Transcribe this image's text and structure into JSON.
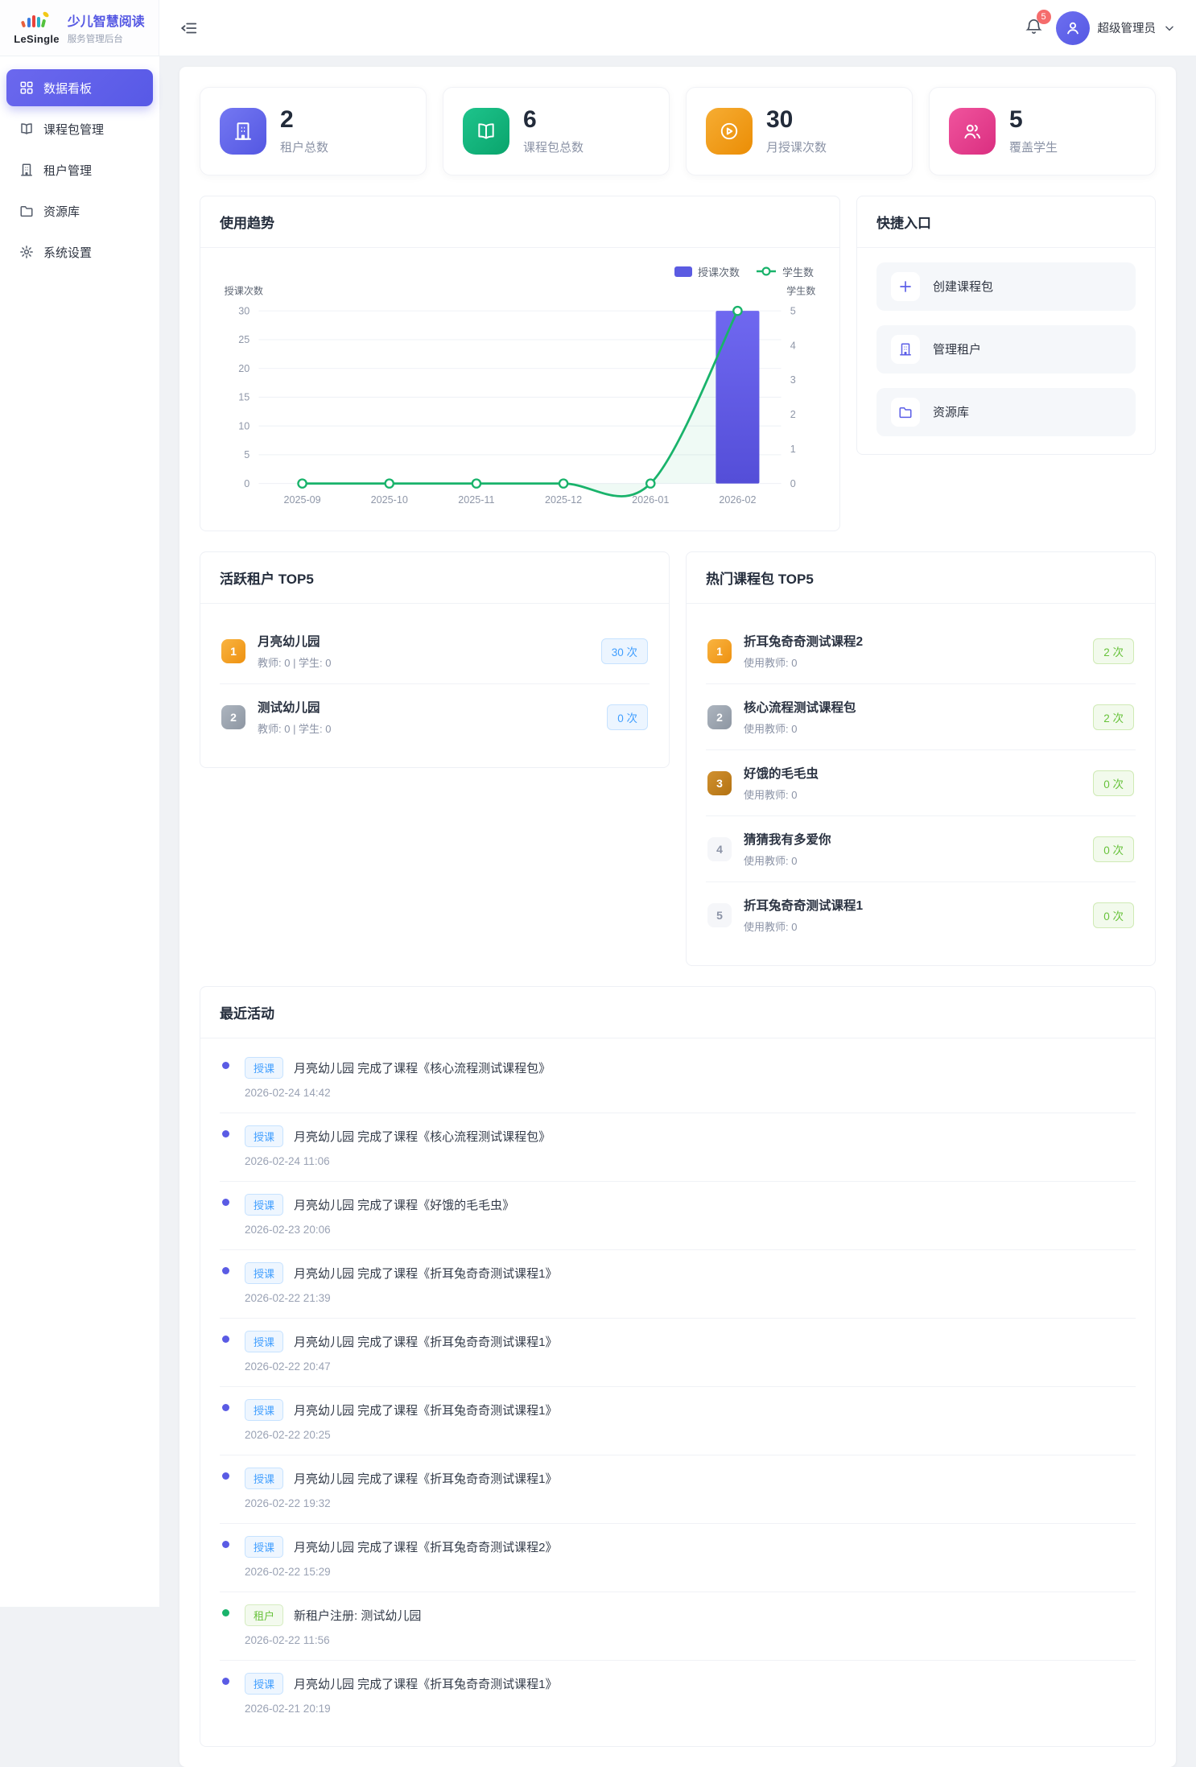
{
  "header": {
    "brand": {
      "name": "LeSingle",
      "title": "少儿智慧阅读",
      "subtitle": "服务管理后台"
    },
    "notification_count": "5",
    "user_name": "超级管理员"
  },
  "sidebar": {
    "items": [
      {
        "label": "数据看板"
      },
      {
        "label": "课程包管理"
      },
      {
        "label": "租户管理"
      },
      {
        "label": "资源库"
      },
      {
        "label": "系统设置"
      }
    ]
  },
  "stats": {
    "cards": [
      {
        "value": "2",
        "label": "租户总数",
        "icon": "building-icon",
        "color": "#5a5de4"
      },
      {
        "value": "6",
        "label": "课程包总数",
        "icon": "book-icon",
        "color": "#10b981"
      },
      {
        "value": "30",
        "label": "月授课次数",
        "icon": "play-icon",
        "color": "#ef9a13"
      },
      {
        "value": "5",
        "label": "覆盖学生",
        "icon": "people-icon",
        "color": "#e23e87"
      }
    ]
  },
  "trend": {
    "title": "使用趋势"
  },
  "chart_data": {
    "type": "bar+line",
    "categories": [
      "2025-09",
      "2025-10",
      "2025-11",
      "2025-12",
      "2026-01",
      "2026-02"
    ],
    "series": [
      {
        "name": "授课次数",
        "type": "bar",
        "axis": "left",
        "color": "#5b55e0",
        "values": [
          0,
          0,
          0,
          0,
          0,
          30
        ]
      },
      {
        "name": "学生数",
        "type": "line",
        "axis": "right",
        "color": "#19b36b",
        "values": [
          0,
          0,
          0,
          0,
          0,
          5
        ]
      }
    ],
    "left_axis": {
      "name": "授课次数",
      "min": 0,
      "max": 30,
      "ticks": [
        0,
        5,
        10,
        15,
        20,
        25,
        30
      ]
    },
    "right_axis": {
      "name": "学生数",
      "min": 0,
      "max": 5,
      "ticks": [
        0,
        1,
        2,
        3,
        4,
        5
      ]
    },
    "grid": true,
    "legend_position": "top-right"
  },
  "quick": {
    "title": "快捷入口",
    "items": [
      {
        "label": "创建课程包"
      },
      {
        "label": "管理租户"
      },
      {
        "label": "资源库"
      }
    ]
  },
  "active_tenants": {
    "title": "活跃租户 TOP5",
    "items": [
      {
        "rank": "1",
        "name": "月亮幼儿园",
        "meta": "教师: 0 | 学生: 0",
        "count": "30 次"
      },
      {
        "rank": "2",
        "name": "测试幼儿园",
        "meta": "教师: 0 | 学生: 0",
        "count": "0 次"
      }
    ]
  },
  "hot_packages": {
    "title": "热门课程包 TOP5",
    "items": [
      {
        "rank": "1",
        "name": "折耳兔奇奇测试课程2",
        "meta": "使用教师: 0",
        "count": "2 次"
      },
      {
        "rank": "2",
        "name": "核心流程测试课程包",
        "meta": "使用教师: 0",
        "count": "2 次"
      },
      {
        "rank": "3",
        "name": "好饿的毛毛虫",
        "meta": "使用教师: 0",
        "count": "0 次"
      },
      {
        "rank": "4",
        "name": "猜猜我有多爱你",
        "meta": "使用教师: 0",
        "count": "0 次"
      },
      {
        "rank": "5",
        "name": "折耳兔奇奇测试课程1",
        "meta": "使用教师: 0",
        "count": "0 次"
      }
    ]
  },
  "activities": {
    "title": "最近活动",
    "items": [
      {
        "type": "course",
        "tag": "授课",
        "text": "月亮幼儿园 完成了课程《核心流程测试课程包》",
        "time": "2026-02-24 14:42"
      },
      {
        "type": "course",
        "tag": "授课",
        "text": "月亮幼儿园 完成了课程《核心流程测试课程包》",
        "time": "2026-02-24 11:06"
      },
      {
        "type": "course",
        "tag": "授课",
        "text": "月亮幼儿园 完成了课程《好饿的毛毛虫》",
        "time": "2026-02-23 20:06"
      },
      {
        "type": "course",
        "tag": "授课",
        "text": "月亮幼儿园 完成了课程《折耳兔奇奇测试课程1》",
        "time": "2026-02-22 21:39"
      },
      {
        "type": "course",
        "tag": "授课",
        "text": "月亮幼儿园 完成了课程《折耳兔奇奇测试课程1》",
        "time": "2026-02-22 20:47"
      },
      {
        "type": "course",
        "tag": "授课",
        "text": "月亮幼儿园 完成了课程《折耳兔奇奇测试课程1》",
        "time": "2026-02-22 20:25"
      },
      {
        "type": "course",
        "tag": "授课",
        "text": "月亮幼儿园 完成了课程《折耳兔奇奇测试课程1》",
        "time": "2026-02-22 19:32"
      },
      {
        "type": "course",
        "tag": "授课",
        "text": "月亮幼儿园 完成了课程《折耳兔奇奇测试课程2》",
        "time": "2026-02-22 15:29"
      },
      {
        "type": "tenant",
        "tag": "租户",
        "text": "新租户注册: 测试幼儿园",
        "time": "2026-02-22 11:56"
      },
      {
        "type": "course",
        "tag": "授课",
        "text": "月亮幼儿园 完成了课程《折耳兔奇奇测试课程1》",
        "time": "2026-02-21 20:19"
      }
    ]
  }
}
